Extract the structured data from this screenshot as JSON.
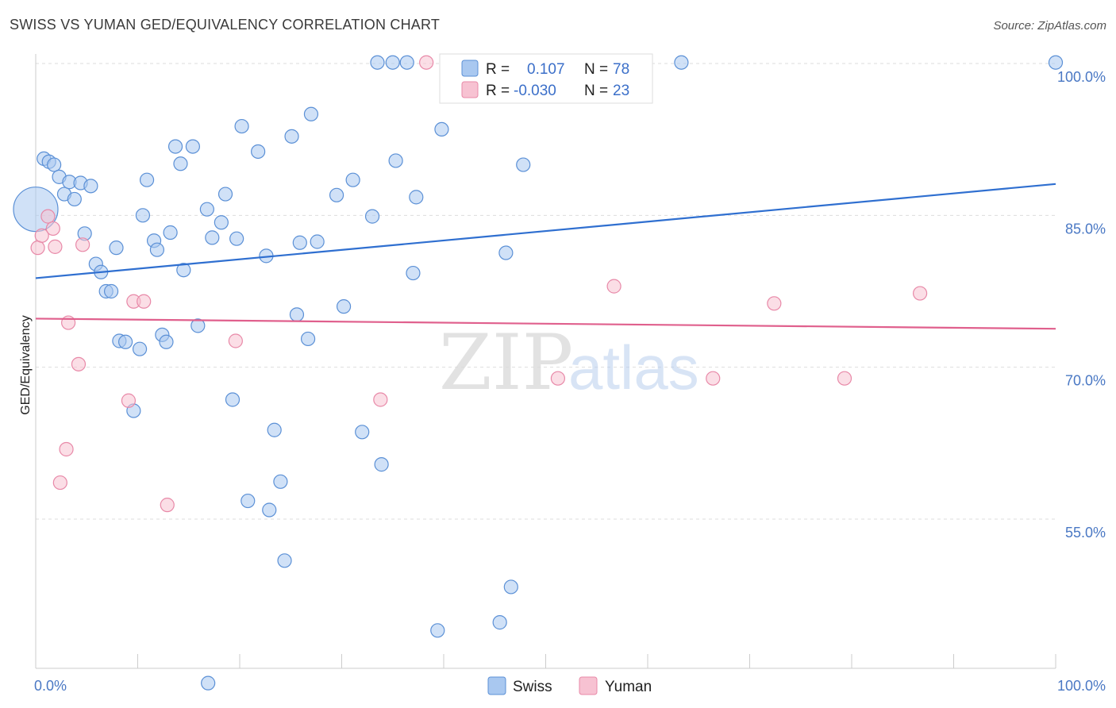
{
  "title": "SWISS VS YUMAN GED/EQUIVALENCY CORRELATION CHART",
  "source": "Source: ZipAtlas.com",
  "watermark": {
    "zip": "ZIP",
    "atlas": "atlas"
  },
  "colors": {
    "swiss_fill": "#a9c8f0",
    "swiss_stroke": "#5b90d6",
    "swiss_line": "#2f6fd0",
    "yuman_fill": "#f7c2d2",
    "yuman_stroke": "#e889a8",
    "yuman_line": "#e0608d",
    "grid": "#dddddd",
    "tick_label": "#4a78c4"
  },
  "legend": {
    "rows": [
      {
        "r_label": "R =",
        "r_value": "0.107",
        "n_label": "N =",
        "n_value": "78"
      },
      {
        "r_label": "R =",
        "r_value": "-0.030",
        "n_label": "N =",
        "n_value": "23"
      }
    ]
  },
  "bottom_legend": [
    "Swiss",
    "Yuman"
  ],
  "chart_data": {
    "type": "scatter",
    "title": "SWISS VS YUMAN GED/EQUIVALENCY CORRELATION CHART",
    "xlabel": "",
    "ylabel": "GED/Equivalency",
    "xlim": [
      0,
      100
    ],
    "ylim": [
      38.5,
      102
    ],
    "x_tick_labels": [
      {
        "value": 0,
        "label": "0.0%"
      },
      {
        "value": 100,
        "label": "100.0%"
      }
    ],
    "y_tick_labels": [
      {
        "value": 100,
        "label": "100.0%"
      },
      {
        "value": 85,
        "label": "85.0%"
      },
      {
        "value": 70,
        "label": "70.0%"
      },
      {
        "value": 55,
        "label": "55.0%"
      }
    ],
    "legend_position": "top-center",
    "series": [
      {
        "name": "Swiss",
        "trend": {
          "x": [
            0,
            100
          ],
          "y": [
            78.8,
            88.1
          ]
        },
        "points": [
          {
            "x": 0,
            "y": 85.6,
            "big": true
          },
          {
            "x": 0.8,
            "y": 90.6
          },
          {
            "x": 1.3,
            "y": 90.3
          },
          {
            "x": 1.8,
            "y": 90.0
          },
          {
            "x": 2.3,
            "y": 88.8
          },
          {
            "x": 2.8,
            "y": 87.1
          },
          {
            "x": 3.3,
            "y": 88.3
          },
          {
            "x": 3.8,
            "y": 86.6
          },
          {
            "x": 4.4,
            "y": 88.2
          },
          {
            "x": 5.4,
            "y": 87.9
          },
          {
            "x": 4.8,
            "y": 83.2
          },
          {
            "x": 5.9,
            "y": 80.2
          },
          {
            "x": 6.4,
            "y": 79.4
          },
          {
            "x": 6.9,
            "y": 77.5
          },
          {
            "x": 7.4,
            "y": 77.5
          },
          {
            "x": 7.9,
            "y": 81.8
          },
          {
            "x": 8.2,
            "y": 72.6
          },
          {
            "x": 8.8,
            "y": 72.5
          },
          {
            "x": 9.6,
            "y": 65.7
          },
          {
            "x": 10.2,
            "y": 71.8
          },
          {
            "x": 10.5,
            "y": 85.0
          },
          {
            "x": 10.9,
            "y": 88.5
          },
          {
            "x": 11.6,
            "y": 82.5
          },
          {
            "x": 11.9,
            "y": 81.6
          },
          {
            "x": 12.4,
            "y": 73.2
          },
          {
            "x": 12.8,
            "y": 72.5
          },
          {
            "x": 13.2,
            "y": 83.3
          },
          {
            "x": 13.7,
            "y": 91.8
          },
          {
            "x": 14.2,
            "y": 90.1
          },
          {
            "x": 14.5,
            "y": 79.6
          },
          {
            "x": 15.4,
            "y": 91.8
          },
          {
            "x": 15.9,
            "y": 74.1
          },
          {
            "x": 16.8,
            "y": 85.6
          },
          {
            "x": 17.3,
            "y": 82.8
          },
          {
            "x": 18.2,
            "y": 84.3
          },
          {
            "x": 18.6,
            "y": 87.1
          },
          {
            "x": 19.3,
            "y": 66.8
          },
          {
            "x": 19.7,
            "y": 82.7
          },
          {
            "x": 20.2,
            "y": 93.8
          },
          {
            "x": 20.8,
            "y": 56.8
          },
          {
            "x": 21.8,
            "y": 91.3
          },
          {
            "x": 22.6,
            "y": 81.0
          },
          {
            "x": 22.9,
            "y": 55.9
          },
          {
            "x": 23.4,
            "y": 63.8
          },
          {
            "x": 24.0,
            "y": 58.7
          },
          {
            "x": 24.4,
            "y": 50.9
          },
          {
            "x": 25.1,
            "y": 92.8
          },
          {
            "x": 25.6,
            "y": 75.2
          },
          {
            "x": 25.9,
            "y": 82.3
          },
          {
            "x": 26.7,
            "y": 72.8
          },
          {
            "x": 27.0,
            "y": 95.0
          },
          {
            "x": 27.6,
            "y": 82.4
          },
          {
            "x": 29.5,
            "y": 87.0
          },
          {
            "x": 30.2,
            "y": 76.0
          },
          {
            "x": 31.1,
            "y": 88.5
          },
          {
            "x": 32.0,
            "y": 63.6
          },
          {
            "x": 33.0,
            "y": 84.9
          },
          {
            "x": 33.5,
            "y": 100.1
          },
          {
            "x": 33.9,
            "y": 60.4
          },
          {
            "x": 35.0,
            "y": 100.1
          },
          {
            "x": 35.3,
            "y": 90.4
          },
          {
            "x": 36.4,
            "y": 100.1
          },
          {
            "x": 37.0,
            "y": 79.3
          },
          {
            "x": 37.3,
            "y": 86.8
          },
          {
            "x": 39.4,
            "y": 44.0
          },
          {
            "x": 39.8,
            "y": 93.5
          },
          {
            "x": 40.3,
            "y": 100.1
          },
          {
            "x": 41.4,
            "y": 100.1
          },
          {
            "x": 45.5,
            "y": 44.8
          },
          {
            "x": 46.1,
            "y": 81.3
          },
          {
            "x": 46.6,
            "y": 48.3
          },
          {
            "x": 47.8,
            "y": 90.0
          },
          {
            "x": 51.6,
            "y": 100.1
          },
          {
            "x": 52.7,
            "y": 100.1
          },
          {
            "x": 56.3,
            "y": 100.1
          },
          {
            "x": 63.3,
            "y": 100.1
          },
          {
            "x": 100,
            "y": 100.1
          },
          {
            "x": 16.9,
            "y": 38.8
          }
        ]
      },
      {
        "name": "Yuman",
        "trend": {
          "x": [
            0,
            100
          ],
          "y": [
            74.8,
            73.8
          ]
        },
        "points": [
          {
            "x": 0.2,
            "y": 81.8
          },
          {
            "x": 0.6,
            "y": 83.0
          },
          {
            "x": 1.2,
            "y": 84.9
          },
          {
            "x": 1.7,
            "y": 83.7
          },
          {
            "x": 1.9,
            "y": 81.9
          },
          {
            "x": 2.4,
            "y": 58.6
          },
          {
            "x": 3.0,
            "y": 61.9
          },
          {
            "x": 3.2,
            "y": 74.4
          },
          {
            "x": 4.2,
            "y": 70.3
          },
          {
            "x": 4.6,
            "y": 82.1
          },
          {
            "x": 9.1,
            "y": 66.7
          },
          {
            "x": 9.6,
            "y": 76.5
          },
          {
            "x": 10.6,
            "y": 76.5
          },
          {
            "x": 12.9,
            "y": 56.4
          },
          {
            "x": 19.6,
            "y": 72.6
          },
          {
            "x": 33.8,
            "y": 66.8
          },
          {
            "x": 38.3,
            "y": 100.1
          },
          {
            "x": 51.2,
            "y": 68.9
          },
          {
            "x": 56.7,
            "y": 78.0
          },
          {
            "x": 66.4,
            "y": 68.9
          },
          {
            "x": 72.4,
            "y": 76.3
          },
          {
            "x": 79.3,
            "y": 68.9
          },
          {
            "x": 86.7,
            "y": 77.3
          }
        ]
      }
    ]
  }
}
